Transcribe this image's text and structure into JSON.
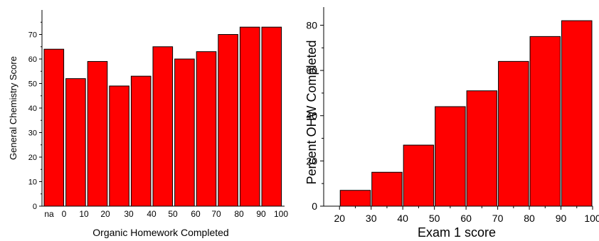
{
  "chart_data": [
    {
      "type": "bar",
      "title": "",
      "xlabel": "Organic Homework Completed",
      "ylabel": "General Chemistry Score",
      "ylim": [
        0,
        80
      ],
      "yticks": [
        0,
        10,
        20,
        30,
        40,
        50,
        60,
        70
      ],
      "x_tick_labels": [
        "na",
        "0",
        "10",
        "20",
        "30",
        "40",
        "50",
        "60",
        "70",
        "80",
        "90",
        "100"
      ],
      "bars": [
        {
          "label": "na",
          "value": 64
        },
        {
          "label": "0-10",
          "value": 52
        },
        {
          "label": "10-20",
          "value": 59
        },
        {
          "label": "20-30",
          "value": 49
        },
        {
          "label": "30-40",
          "value": 53
        },
        {
          "label": "40-50",
          "value": 65
        },
        {
          "label": "50-60",
          "value": 60
        },
        {
          "label": "60-70",
          "value": 63
        },
        {
          "label": "70-80",
          "value": 70
        },
        {
          "label": "80-90",
          "value": 73
        },
        {
          "label": "90-100",
          "value": 73
        }
      ],
      "bar_color": "#ff0000",
      "grid": false
    },
    {
      "type": "bar",
      "title": "",
      "xlabel": "Exam 1 score",
      "ylabel": "Percent OHW Completed",
      "xlim": [
        15,
        100
      ],
      "ylim": [
        0,
        88
      ],
      "yticks": [
        0,
        20,
        40,
        60,
        80
      ],
      "xticks": [
        20,
        30,
        40,
        50,
        60,
        70,
        80,
        90,
        100
      ],
      "bars": [
        {
          "x_start": 20,
          "x_end": 30,
          "value": 7
        },
        {
          "x_start": 30,
          "x_end": 40,
          "value": 15
        },
        {
          "x_start": 40,
          "x_end": 50,
          "value": 27
        },
        {
          "x_start": 50,
          "x_end": 60,
          "value": 44
        },
        {
          "x_start": 60,
          "x_end": 70,
          "value": 51
        },
        {
          "x_start": 70,
          "x_end": 80,
          "value": 64
        },
        {
          "x_start": 80,
          "x_end": 90,
          "value": 75
        },
        {
          "x_start": 90,
          "x_end": 100,
          "value": 82
        }
      ],
      "bar_color": "#ff0000",
      "grid": false
    }
  ]
}
